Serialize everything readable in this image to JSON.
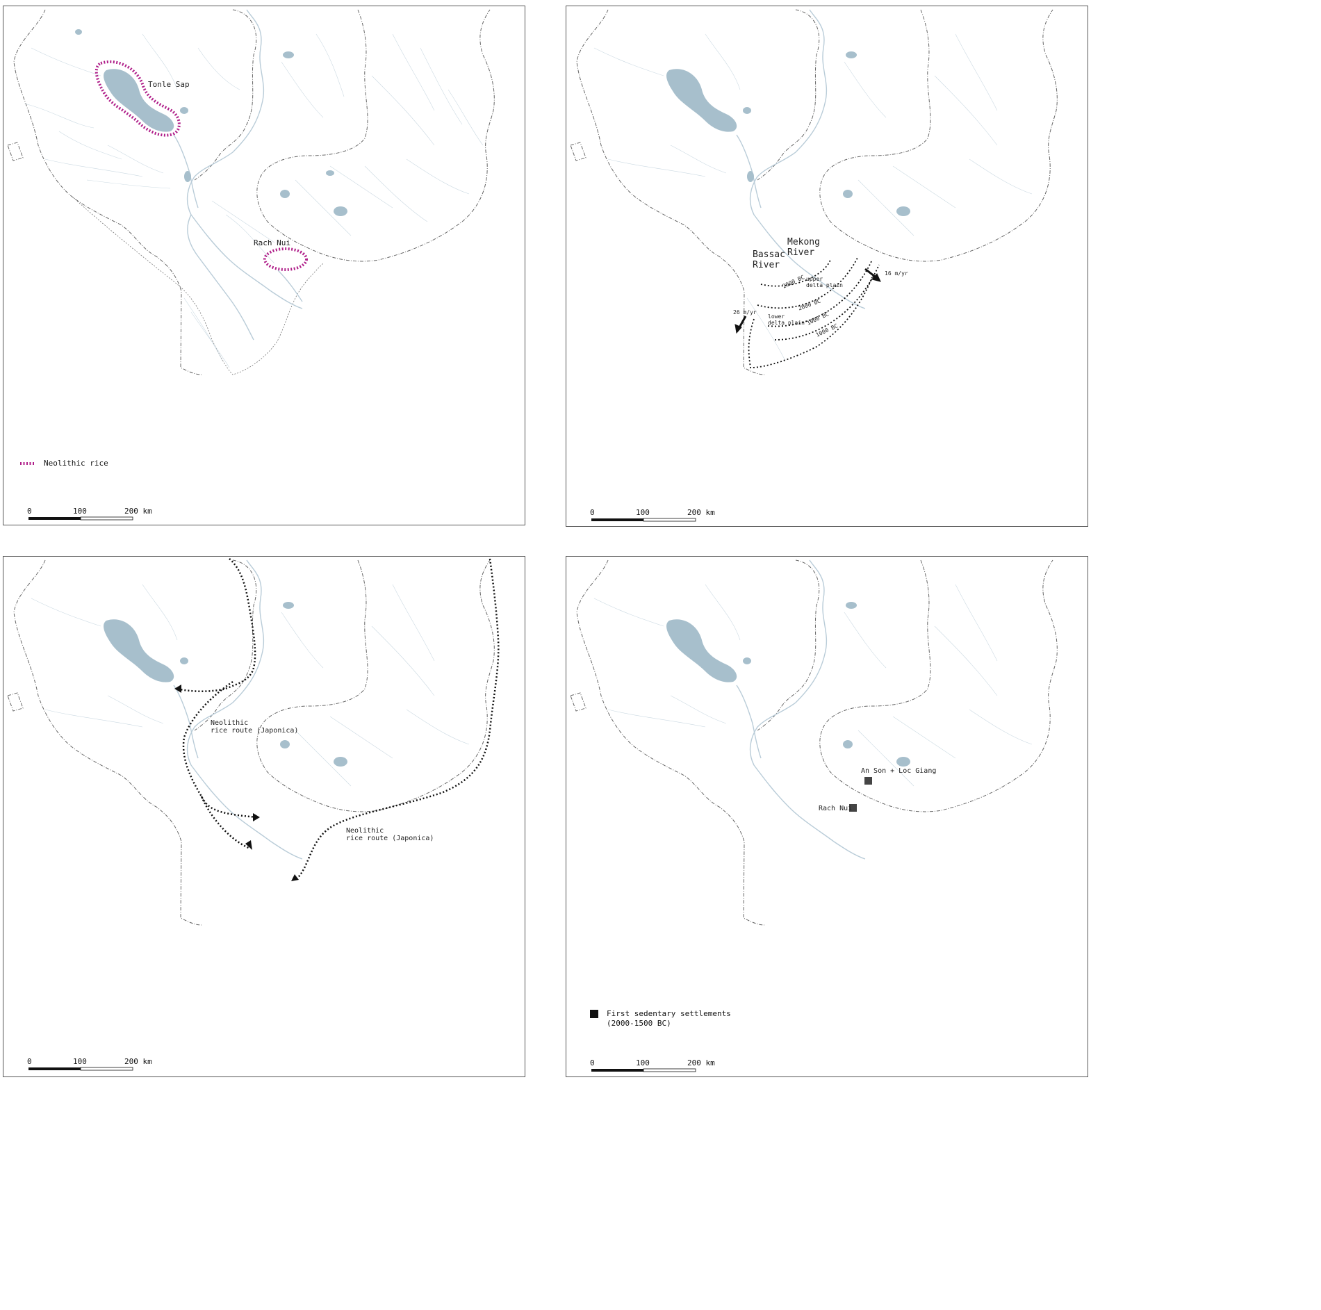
{
  "panels": [
    {
      "id": "neolithic-rice-sites",
      "labels": {
        "tonle_sap": "Tonle Sap",
        "rach_nui": "Rach Nui"
      },
      "legend": {
        "text": "Neolithic rice",
        "color": "#b0208a"
      }
    },
    {
      "id": "delta-progradation",
      "labels": {
        "mekong_river": "Mekong\nRiver",
        "bassac_river": "Bassac\nRiver",
        "upper_delta_plain": "upper\ndelta plain",
        "lower_delta_plain": "lower\ndelta plain",
        "iso_a": "2000 BC",
        "iso_b": "2000 BC",
        "iso_c": "1000 BC",
        "iso_d": "1000 BC",
        "rate_east": "16 m/yr",
        "rate_west": "26 m/yr"
      }
    },
    {
      "id": "rice-routes",
      "labels": {
        "route_inland": "Neolithic\nrice route (Japonica)",
        "route_coastal": "Neolithic\nrice route (Japonica)"
      }
    },
    {
      "id": "sedentary-settlements",
      "labels": {
        "an_son": "An Son + Loc Giang",
        "rach_nui": "Rach Nui"
      },
      "legend": {
        "text": "First sedentary settlements\n(2000-1500 BC)",
        "color": "#111111"
      }
    }
  ],
  "scale_bar": {
    "ticks": [
      "0",
      "100",
      "200 km"
    ]
  },
  "colors": {
    "water": "#a7bfcc",
    "river": "#b9ccd8",
    "border": "#666666",
    "frame": "#555555"
  }
}
